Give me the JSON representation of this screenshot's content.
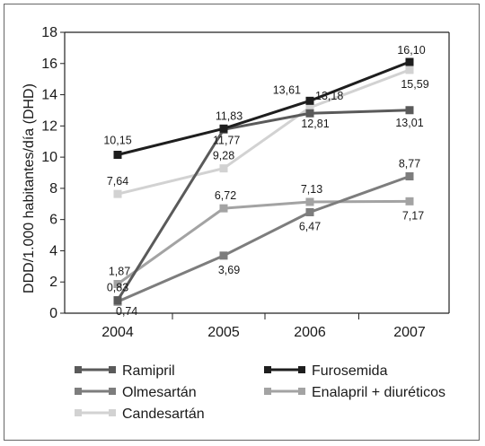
{
  "chart_data": {
    "type": "line",
    "title": "",
    "xlabel": "",
    "ylabel": "DDD/1.000 habitantes/día (DHD)",
    "categories": [
      "2004",
      "2005",
      "2006",
      "2007"
    ],
    "ylim": [
      0,
      18
    ],
    "yticks": [
      "0",
      "2",
      "4",
      "6",
      "8",
      "10",
      "12",
      "14",
      "16",
      "18"
    ],
    "grid": false,
    "legend_position": "bottom",
    "series": [
      {
        "name": "Ramipril",
        "color": "#5a5a5a",
        "values": [
          0.83,
          11.77,
          12.81,
          13.01
        ],
        "labels": [
          "0,83",
          "11,77",
          "12,81",
          "13,01"
        ]
      },
      {
        "name": "Furosemida",
        "color": "#1e1e1e",
        "values": [
          10.15,
          11.83,
          13.61,
          16.1
        ],
        "labels": [
          "10,15",
          "11,83",
          "13,61",
          "16,10"
        ]
      },
      {
        "name": "Olmesartán",
        "color": "#7d7d7d",
        "values": [
          0.74,
          3.69,
          6.47,
          8.77
        ],
        "labels": [
          "0,74",
          "3,69",
          "6,47",
          "8,77"
        ]
      },
      {
        "name": "Enalapril + diuréticos",
        "color": "#a3a3a3",
        "values": [
          1.87,
          6.72,
          7.13,
          7.17
        ],
        "labels": [
          "1,87",
          "6,72",
          "7,13",
          "7,17"
        ]
      },
      {
        "name": "Candesartán",
        "color": "#d2d2d2",
        "values": [
          7.64,
          9.28,
          13.18,
          15.59
        ],
        "labels": [
          "7,64",
          "9,28",
          "13,18",
          "15,59"
        ]
      }
    ]
  }
}
